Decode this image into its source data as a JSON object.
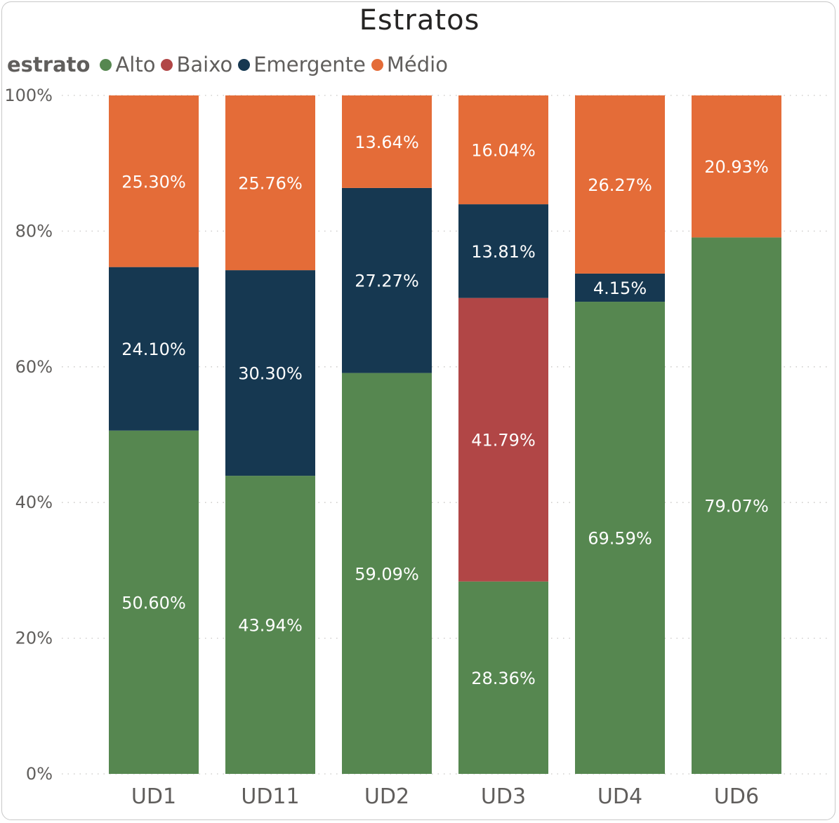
{
  "chart_data": {
    "type": "bar",
    "stacked": "100%",
    "title": "Estratos",
    "legend": {
      "title": "estrato",
      "placement": "top-left",
      "entries": [
        "Alto",
        "Baixo",
        "Emergente",
        "Médio"
      ]
    },
    "xlabel": "",
    "ylabel": "",
    "ylim": [
      0,
      100
    ],
    "yticks": [
      "0%",
      "20%",
      "40%",
      "60%",
      "80%",
      "100%"
    ],
    "ytick_values": [
      0,
      20,
      40,
      60,
      80,
      100
    ],
    "grid": "horizontal dotted",
    "categories": [
      "UD1",
      "UD11",
      "UD2",
      "UD3",
      "UD4",
      "UD6"
    ],
    "series": [
      {
        "name": "Alto",
        "color": "#568750",
        "values": [
          50.6,
          43.94,
          59.09,
          28.36,
          69.59,
          79.07
        ],
        "labels": [
          "50.60%",
          "43.94%",
          "59.09%",
          "28.36%",
          "69.59%",
          "79.07%"
        ]
      },
      {
        "name": "Baixo",
        "color": "#b14646",
        "values": [
          0,
          0,
          0,
          41.79,
          0,
          0
        ],
        "labels": [
          "",
          "",
          "",
          "41.79%",
          "",
          ""
        ]
      },
      {
        "name": "Emergente",
        "color": "#163851",
        "values": [
          24.1,
          30.3,
          27.27,
          13.81,
          4.15,
          0
        ],
        "labels": [
          "24.10%",
          "30.30%",
          "27.27%",
          "13.81%",
          "4.15%",
          ""
        ]
      },
      {
        "name": "Médio",
        "color": "#e46c38",
        "values": [
          25.3,
          25.76,
          13.64,
          16.04,
          26.27,
          20.93
        ],
        "labels": [
          "25.30%",
          "25.76%",
          "13.64%",
          "16.04%",
          "26.27%",
          "20.93%"
        ]
      }
    ]
  }
}
